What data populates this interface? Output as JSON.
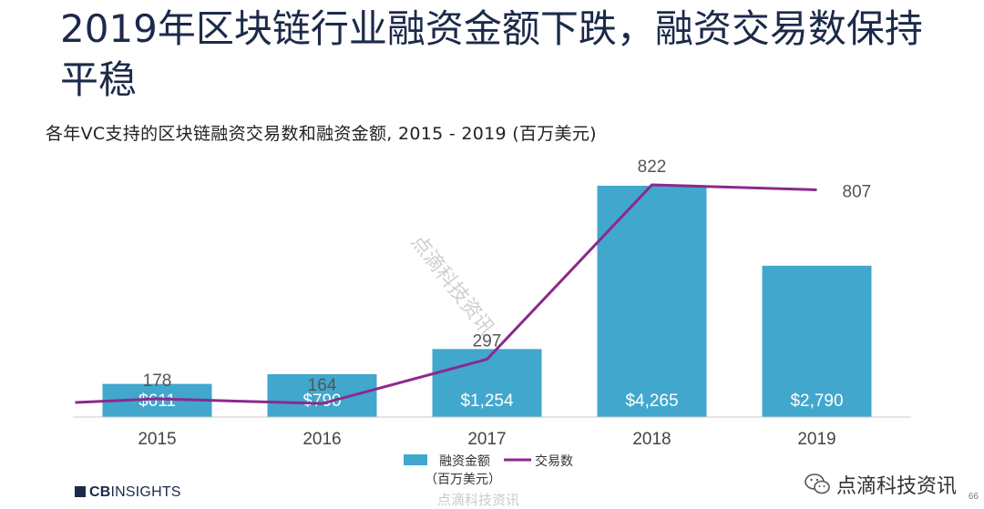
{
  "header": {
    "title": "2019年区块链行业融资金额下跌，融资交易数保持平稳",
    "subtitle": "各年VC支持的区块链融资交易数和融资金额, 2015 -  2019 (百万美元)"
  },
  "chart_data": {
    "type": "bar",
    "categories": [
      "2015",
      "2016",
      "2017",
      "2018",
      "2019"
    ],
    "series": [
      {
        "name": "融资金额（百万美元）",
        "type": "bar",
        "values": [
          611,
          790,
          1254,
          4265,
          2790
        ],
        "labels": [
          "$611",
          "$790",
          "$1,254",
          "$4,265",
          "$2,790"
        ],
        "color": "#41a7cd"
      },
      {
        "name": "交易数",
        "type": "line",
        "values": [
          178,
          164,
          297,
          822,
          807
        ],
        "labels": [
          "178",
          "164",
          "297",
          "822",
          "807"
        ],
        "color": "#8a2a8c"
      }
    ],
    "legend": {
      "position": "bottom",
      "bar_label_line1": "融资金额",
      "bar_label_line2": "（百万美元）",
      "line_label": "交易数"
    }
  },
  "footer": {
    "brand_prefix": "CB",
    "brand_suffix": "INSIGHTS",
    "wechat_label": "点滴科技资讯",
    "page_number": "66",
    "watermark": "点滴科技资讯"
  }
}
